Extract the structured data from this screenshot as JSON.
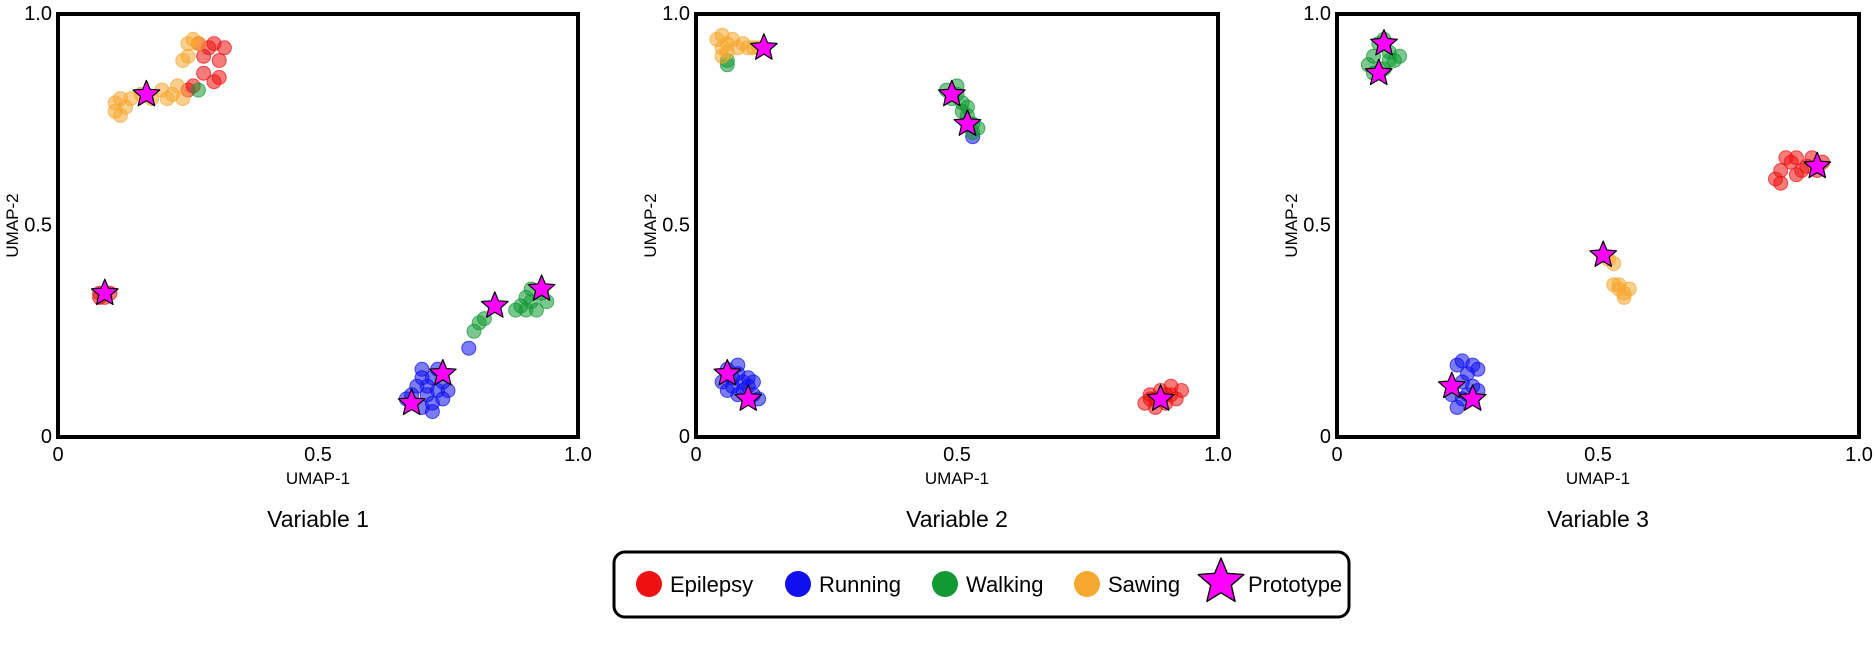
{
  "legend": {
    "placement": "bottom-center",
    "items": [
      {
        "label": "Epilepsy",
        "color": "#ee1111",
        "marker": "circle"
      },
      {
        "label": "Running",
        "color": "#1010ee",
        "marker": "circle"
      },
      {
        "label": "Walking",
        "color": "#119933",
        "marker": "circle"
      },
      {
        "label": "Sawing",
        "color": "#f5a830",
        "marker": "circle"
      },
      {
        "label": "Prototype",
        "color": "#ff00ff",
        "marker": "star"
      }
    ]
  },
  "chart_data": [
    {
      "type": "scatter",
      "title": "Variable 1",
      "xlabel": "UMAP-1",
      "ylabel": "UMAP-2",
      "xlim": [
        0,
        1.0
      ],
      "ylim": [
        0,
        1.0
      ],
      "xticks": [
        "0",
        "0.5",
        "1.0"
      ],
      "yticks": [
        "0",
        "0.5",
        "1.0"
      ],
      "grid": false,
      "series": [
        {
          "name": "Epilepsy",
          "color": "#ee1111",
          "points": [
            [
              0.27,
              0.93
            ],
            [
              0.29,
              0.92
            ],
            [
              0.3,
              0.93
            ],
            [
              0.32,
              0.92
            ],
            [
              0.31,
              0.89
            ],
            [
              0.31,
              0.85
            ],
            [
              0.3,
              0.84
            ],
            [
              0.28,
              0.9
            ],
            [
              0.28,
              0.86
            ],
            [
              0.25,
              0.82
            ],
            [
              0.26,
              0.83
            ],
            [
              0.08,
              0.34
            ],
            [
              0.09,
              0.33
            ],
            [
              0.09,
              0.34
            ],
            [
              0.1,
              0.34
            ],
            [
              0.08,
              0.33
            ]
          ]
        },
        {
          "name": "Running",
          "color": "#1010ee",
          "points": [
            [
              0.67,
              0.09
            ],
            [
              0.68,
              0.1
            ],
            [
              0.7,
              0.07
            ],
            [
              0.71,
              0.12
            ],
            [
              0.72,
              0.14
            ],
            [
              0.72,
              0.08
            ],
            [
              0.73,
              0.11
            ],
            [
              0.7,
              0.14
            ],
            [
              0.74,
              0.13
            ],
            [
              0.74,
              0.09
            ],
            [
              0.75,
              0.11
            ],
            [
              0.69,
              0.12
            ],
            [
              0.72,
              0.06
            ],
            [
              0.73,
              0.16
            ],
            [
              0.71,
              0.1
            ],
            [
              0.7,
              0.16
            ],
            [
              0.79,
              0.21
            ]
          ]
        },
        {
          "name": "Walking",
          "color": "#119933",
          "points": [
            [
              0.8,
              0.25
            ],
            [
              0.81,
              0.27
            ],
            [
              0.82,
              0.28
            ],
            [
              0.89,
              0.31
            ],
            [
              0.9,
              0.33
            ],
            [
              0.91,
              0.32
            ],
            [
              0.92,
              0.3
            ],
            [
              0.93,
              0.34
            ],
            [
              0.94,
              0.32
            ],
            [
              0.9,
              0.3
            ],
            [
              0.91,
              0.35
            ],
            [
              0.88,
              0.3
            ],
            [
              0.27,
              0.82
            ]
          ]
        },
        {
          "name": "Sawing",
          "color": "#f5a830",
          "points": [
            [
              0.11,
              0.79
            ],
            [
              0.12,
              0.76
            ],
            [
              0.13,
              0.78
            ],
            [
              0.11,
              0.77
            ],
            [
              0.14,
              0.8
            ],
            [
              0.12,
              0.8
            ],
            [
              0.16,
              0.81
            ],
            [
              0.18,
              0.8
            ],
            [
              0.2,
              0.82
            ],
            [
              0.21,
              0.8
            ],
            [
              0.22,
              0.81
            ],
            [
              0.23,
              0.83
            ],
            [
              0.24,
              0.8
            ],
            [
              0.25,
              0.93
            ],
            [
              0.26,
              0.94
            ],
            [
              0.25,
              0.9
            ],
            [
              0.24,
              0.89
            ],
            [
              0.27,
              0.93
            ]
          ]
        },
        {
          "name": "Prototype",
          "color": "#ff00ff",
          "marker": "star",
          "points": [
            [
              0.17,
              0.81
            ],
            [
              0.09,
              0.34
            ],
            [
              0.68,
              0.08
            ],
            [
              0.74,
              0.15
            ],
            [
              0.84,
              0.31
            ],
            [
              0.93,
              0.35
            ]
          ]
        }
      ]
    },
    {
      "type": "scatter",
      "title": "Variable 2",
      "xlabel": "UMAP-1",
      "ylabel": "UMAP-2",
      "xlim": [
        0,
        1.0
      ],
      "ylim": [
        0,
        1.0
      ],
      "xticks": [
        "0",
        "0.5",
        "1.0"
      ],
      "yticks": [
        "0",
        "0.5",
        "1.0"
      ],
      "grid": false,
      "series": [
        {
          "name": "Epilepsy",
          "color": "#ee1111",
          "points": [
            [
              0.86,
              0.08
            ],
            [
              0.87,
              0.1
            ],
            [
              0.88,
              0.09
            ],
            [
              0.89,
              0.11
            ],
            [
              0.9,
              0.08
            ],
            [
              0.91,
              0.1
            ],
            [
              0.92,
              0.09
            ],
            [
              0.93,
              0.11
            ],
            [
              0.88,
              0.07
            ],
            [
              0.91,
              0.12
            ],
            [
              0.87,
              0.09
            ],
            [
              0.9,
              0.1
            ]
          ]
        },
        {
          "name": "Running",
          "color": "#1010ee",
          "points": [
            [
              0.05,
              0.13
            ],
            [
              0.06,
              0.16
            ],
            [
              0.07,
              0.12
            ],
            [
              0.08,
              0.15
            ],
            [
              0.09,
              0.11
            ],
            [
              0.1,
              0.14
            ],
            [
              0.11,
              0.1
            ],
            [
              0.08,
              0.17
            ],
            [
              0.07,
              0.14
            ],
            [
              0.09,
              0.13
            ],
            [
              0.06,
              0.11
            ],
            [
              0.1,
              0.12
            ],
            [
              0.11,
              0.13
            ],
            [
              0.12,
              0.09
            ],
            [
              0.08,
              0.1
            ],
            [
              0.53,
              0.71
            ]
          ]
        },
        {
          "name": "Walking",
          "color": "#119933",
          "points": [
            [
              0.48,
              0.82
            ],
            [
              0.49,
              0.8
            ],
            [
              0.5,
              0.81
            ],
            [
              0.51,
              0.79
            ],
            [
              0.51,
              0.77
            ],
            [
              0.52,
              0.76
            ],
            [
              0.53,
              0.74
            ],
            [
              0.53,
              0.72
            ],
            [
              0.54,
              0.73
            ],
            [
              0.52,
              0.78
            ],
            [
              0.5,
              0.83
            ],
            [
              0.06,
              0.89
            ],
            [
              0.06,
              0.88
            ]
          ]
        },
        {
          "name": "Sawing",
          "color": "#f5a830",
          "points": [
            [
              0.04,
              0.94
            ],
            [
              0.05,
              0.95
            ],
            [
              0.06,
              0.93
            ],
            [
              0.05,
              0.92
            ],
            [
              0.07,
              0.94
            ],
            [
              0.08,
              0.92
            ],
            [
              0.09,
              0.93
            ],
            [
              0.1,
              0.92
            ],
            [
              0.11,
              0.92
            ],
            [
              0.06,
              0.91
            ],
            [
              0.05,
              0.9
            ],
            [
              0.12,
              0.92
            ]
          ]
        },
        {
          "name": "Prototype",
          "color": "#ff00ff",
          "marker": "star",
          "points": [
            [
              0.13,
              0.92
            ],
            [
              0.49,
              0.81
            ],
            [
              0.52,
              0.74
            ],
            [
              0.06,
              0.15
            ],
            [
              0.1,
              0.09
            ],
            [
              0.89,
              0.09
            ]
          ]
        }
      ]
    },
    {
      "type": "scatter",
      "title": "Variable 3",
      "xlabel": "UMAP-1",
      "ylabel": "UMAP-2",
      "xlim": [
        0,
        1.0
      ],
      "ylim": [
        0,
        1.0
      ],
      "xticks": [
        "0",
        "0.5",
        "1.0"
      ],
      "yticks": [
        "0",
        "0.5",
        "1.0"
      ],
      "grid": false,
      "series": [
        {
          "name": "Epilepsy",
          "color": "#ee1111",
          "points": [
            [
              0.84,
              0.61
            ],
            [
              0.85,
              0.63
            ],
            [
              0.86,
              0.66
            ],
            [
              0.87,
              0.65
            ],
            [
              0.88,
              0.62
            ],
            [
              0.89,
              0.63
            ],
            [
              0.9,
              0.64
            ],
            [
              0.91,
              0.66
            ],
            [
              0.92,
              0.63
            ],
            [
              0.93,
              0.65
            ],
            [
              0.85,
              0.6
            ],
            [
              0.88,
              0.66
            ]
          ]
        },
        {
          "name": "Running",
          "color": "#1010ee",
          "points": [
            [
              0.23,
              0.17
            ],
            [
              0.24,
              0.18
            ],
            [
              0.25,
              0.15
            ],
            [
              0.26,
              0.12
            ],
            [
              0.24,
              0.09
            ],
            [
              0.23,
              0.07
            ],
            [
              0.25,
              0.1
            ],
            [
              0.27,
              0.11
            ],
            [
              0.27,
              0.16
            ],
            [
              0.26,
              0.17
            ],
            [
              0.22,
              0.1
            ],
            [
              0.24,
              0.13
            ]
          ]
        },
        {
          "name": "Walking",
          "color": "#119933",
          "points": [
            [
              0.06,
              0.88
            ],
            [
              0.07,
              0.9
            ],
            [
              0.08,
              0.93
            ],
            [
              0.09,
              0.94
            ],
            [
              0.1,
              0.91
            ],
            [
              0.11,
              0.89
            ],
            [
              0.12,
              0.9
            ],
            [
              0.07,
              0.86
            ],
            [
              0.09,
              0.87
            ],
            [
              0.1,
              0.89
            ]
          ]
        },
        {
          "name": "Sawing",
          "color": "#f5a830",
          "points": [
            [
              0.51,
              0.43
            ],
            [
              0.52,
              0.42
            ],
            [
              0.53,
              0.41
            ],
            [
              0.53,
              0.36
            ],
            [
              0.54,
              0.35
            ],
            [
              0.55,
              0.34
            ],
            [
              0.56,
              0.35
            ],
            [
              0.55,
              0.33
            ],
            [
              0.54,
              0.36
            ]
          ]
        },
        {
          "name": "Prototype",
          "color": "#ff00ff",
          "marker": "star",
          "points": [
            [
              0.09,
              0.93
            ],
            [
              0.08,
              0.86
            ],
            [
              0.92,
              0.64
            ],
            [
              0.51,
              0.43
            ],
            [
              0.22,
              0.12
            ],
            [
              0.26,
              0.09
            ]
          ]
        }
      ]
    }
  ]
}
